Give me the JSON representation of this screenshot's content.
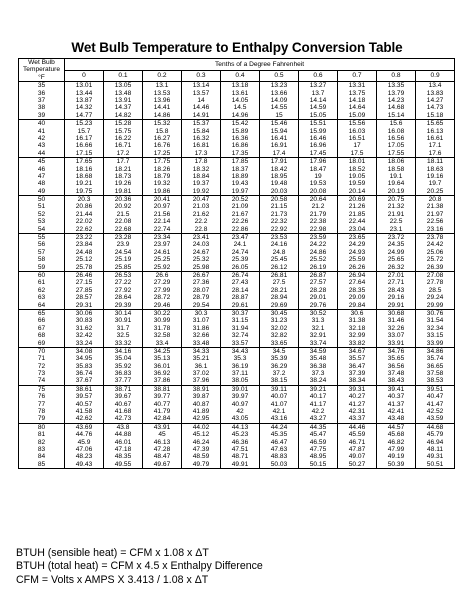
{
  "title": "Wet Bulb Temperature to Enthalpy Conversion Table",
  "header": {
    "wet_bulb_label": "Wet Bulb",
    "temperature_label": "Temperature",
    "unit_label": "°F",
    "tenths_label": "Tenths of a Degree Fahrenheit",
    "columns": [
      "0",
      "0.1",
      "0.2",
      "0.3",
      "0.4",
      "0.5",
      "0.6",
      "0.7",
      "0.8",
      "0.9"
    ]
  },
  "groups": [
    {
      "rows": [
        {
          "temp": "35",
          "values": [
            "13.01",
            "13.05",
            "13.1",
            "13.14",
            "13.18",
            "13.23",
            "13.27",
            "13.31",
            "13.35",
            "13.4"
          ]
        },
        {
          "temp": "36",
          "values": [
            "13.44",
            "13.48",
            "13.53",
            "13.57",
            "13.61",
            "13.66",
            "13.7",
            "13.75",
            "13.79",
            "13.83"
          ]
        },
        {
          "temp": "37",
          "values": [
            "13.87",
            "13.91",
            "13.96",
            "14",
            "14.05",
            "14.09",
            "14.14",
            "14.18",
            "14.23",
            "14.27"
          ]
        },
        {
          "temp": "38",
          "values": [
            "14.32",
            "14.37",
            "14.41",
            "14.46",
            "14.5",
            "14.55",
            "14.59",
            "14.64",
            "14.68",
            "14.73"
          ]
        },
        {
          "temp": "39",
          "values": [
            "14.77",
            "14.82",
            "14.86",
            "14.91",
            "14.96",
            "15",
            "15.05",
            "15.09",
            "15.14",
            "15.18"
          ]
        }
      ]
    },
    {
      "rows": [
        {
          "temp": "40",
          "values": [
            "15.23",
            "15.28",
            "15.32",
            "15.37",
            "15.42",
            "15.46",
            "15.51",
            "15.56",
            "15.6",
            "15.65"
          ]
        },
        {
          "temp": "41",
          "values": [
            "15.7",
            "15.75",
            "15.8",
            "15.84",
            "15.89",
            "15.94",
            "15.99",
            "16.03",
            "16.08",
            "16.13"
          ]
        },
        {
          "temp": "42",
          "values": [
            "16.17",
            "16.22",
            "16.27",
            "16.32",
            "16.36",
            "16.41",
            "16.46",
            "16.51",
            "16.56",
            "16.61"
          ]
        },
        {
          "temp": "43",
          "values": [
            "16.66",
            "16.71",
            "16.76",
            "16.81",
            "16.86",
            "16.91",
            "16.96",
            "17",
            "17.05",
            "17.1"
          ]
        },
        {
          "temp": "44",
          "values": [
            "17.15",
            "17.2",
            "17.25",
            "17.3",
            "17.35",
            "17.4",
            "17.45",
            "17.5",
            "17.55",
            "17.6"
          ]
        }
      ]
    },
    {
      "rows": [
        {
          "temp": "45",
          "values": [
            "17.65",
            "17.7",
            "17.75",
            "17.8",
            "17.85",
            "17.91",
            "17.96",
            "18.01",
            "18.06",
            "18.11"
          ]
        },
        {
          "temp": "46",
          "values": [
            "18.16",
            "18.21",
            "18.26",
            "18.32",
            "18.37",
            "18.42",
            "18.47",
            "18.52",
            "18.58",
            "18.63"
          ]
        },
        {
          "temp": "47",
          "values": [
            "18.68",
            "18.73",
            "18.79",
            "18.84",
            "18.89",
            "18.95",
            "19",
            "19.05",
            "19.1",
            "19.16"
          ]
        },
        {
          "temp": "48",
          "values": [
            "19.21",
            "19.26",
            "19.32",
            "19.37",
            "19.43",
            "19.48",
            "19.53",
            "19.59",
            "19.64",
            "19.7"
          ]
        },
        {
          "temp": "49",
          "values": [
            "19.75",
            "19.81",
            "19.86",
            "19.92",
            "19.97",
            "20.03",
            "20.08",
            "20.14",
            "20.19",
            "20.25"
          ]
        }
      ]
    },
    {
      "rows": [
        {
          "temp": "50",
          "values": [
            "20.3",
            "20.36",
            "20.41",
            "20.47",
            "20.52",
            "20.58",
            "20.64",
            "20.69",
            "20.75",
            "20.8"
          ]
        },
        {
          "temp": "51",
          "values": [
            "20.86",
            "20.92",
            "20.97",
            "21.03",
            "21.09",
            "21.15",
            "21.2",
            "21.26",
            "21.32",
            "21.38"
          ]
        },
        {
          "temp": "52",
          "values": [
            "21.44",
            "21.5",
            "21.56",
            "21.62",
            "21.67",
            "21.73",
            "21.79",
            "21.85",
            "21.91",
            "21.97"
          ]
        },
        {
          "temp": "53",
          "values": [
            "22.02",
            "22.08",
            "22.14",
            "22.2",
            "22.26",
            "22.32",
            "22.38",
            "22.44",
            "22.5",
            "22.56"
          ]
        },
        {
          "temp": "54",
          "values": [
            "22.62",
            "22.68",
            "22.74",
            "22.8",
            "22.86",
            "22.92",
            "22.98",
            "23.04",
            "23.1",
            "23.16"
          ]
        }
      ]
    },
    {
      "rows": [
        {
          "temp": "55",
          "values": [
            "23.22",
            "23.28",
            "23.34",
            "23.41",
            "23.47",
            "23.53",
            "23.59",
            "23.65",
            "23.72",
            "23.78"
          ]
        },
        {
          "temp": "56",
          "values": [
            "23.84",
            "23.9",
            "23.97",
            "24.03",
            "24.1",
            "24.16",
            "24.22",
            "24.29",
            "24.35",
            "24.42"
          ]
        },
        {
          "temp": "57",
          "values": [
            "24.48",
            "24.54",
            "24.61",
            "24.67",
            "24.74",
            "24.8",
            "24.86",
            "24.93",
            "24.99",
            "25.06"
          ]
        },
        {
          "temp": "58",
          "values": [
            "25.12",
            "25.19",
            "25.25",
            "25.32",
            "25.39",
            "25.45",
            "25.52",
            "25.59",
            "25.65",
            "25.72"
          ]
        },
        {
          "temp": "59",
          "values": [
            "25.78",
            "25.85",
            "25.92",
            "25.98",
            "26.05",
            "26.12",
            "26.19",
            "26.26",
            "26.32",
            "26.39"
          ]
        }
      ]
    },
    {
      "rows": [
        {
          "temp": "60",
          "values": [
            "26.46",
            "26.53",
            "26.6",
            "26.67",
            "26.74",
            "26.81",
            "26.87",
            "26.94",
            "27.01",
            "27.08"
          ]
        },
        {
          "temp": "61",
          "values": [
            "27.15",
            "27.22",
            "27.29",
            "27.36",
            "27.43",
            "27.5",
            "27.57",
            "27.64",
            "27.71",
            "27.78"
          ]
        },
        {
          "temp": "62",
          "values": [
            "27.85",
            "27.92",
            "27.99",
            "28.07",
            "28.14",
            "28.21",
            "28.28",
            "28.35",
            "28.43",
            "28.5"
          ]
        },
        {
          "temp": "63",
          "values": [
            "28.57",
            "28.64",
            "28.72",
            "28.79",
            "28.87",
            "28.94",
            "29.01",
            "29.09",
            "29.16",
            "29.24"
          ]
        },
        {
          "temp": "64",
          "values": [
            "29.31",
            "29.39",
            "29.46",
            "29.54",
            "29.61",
            "29.69",
            "29.76",
            "29.84",
            "29.91",
            "29.99"
          ]
        }
      ]
    },
    {
      "rows": [
        {
          "temp": "65",
          "values": [
            "30.06",
            "30.14",
            "30.22",
            "30.3",
            "30.37",
            "30.45",
            "30.52",
            "30.6",
            "30.68",
            "30.76"
          ]
        },
        {
          "temp": "66",
          "values": [
            "30.83",
            "30.91",
            "30.99",
            "31.07",
            "31.15",
            "31.23",
            "31.3",
            "31.38",
            "31.46",
            "31.54"
          ]
        },
        {
          "temp": "67",
          "values": [
            "31.62",
            "31.7",
            "31.78",
            "31.86",
            "31.94",
            "32.02",
            "32.1",
            "32.18",
            "32.26",
            "32.34"
          ]
        },
        {
          "temp": "68",
          "values": [
            "32.42",
            "32.5",
            "32.58",
            "32.66",
            "32.74",
            "32.82",
            "32.91",
            "32.99",
            "33.07",
            "33.15"
          ]
        },
        {
          "temp": "69",
          "values": [
            "33.24",
            "33.32",
            "33.4",
            "33.48",
            "33.57",
            "33.65",
            "33.74",
            "33.82",
            "33.91",
            "33.99"
          ]
        }
      ]
    },
    {
      "rows": [
        {
          "temp": "70",
          "values": [
            "34.08",
            "34.16",
            "34.25",
            "34.33",
            "34.43",
            "34.5",
            "34.59",
            "34.67",
            "34.76",
            "34.86"
          ]
        },
        {
          "temp": "71",
          "values": [
            "34.95",
            "35.04",
            "35.13",
            "35.21",
            "35.3",
            "35.39",
            "35.48",
            "35.57",
            "35.65",
            "35.74"
          ]
        },
        {
          "temp": "72",
          "values": [
            "35.83",
            "35.92",
            "36.01",
            "36.1",
            "36.19",
            "36.29",
            "36.38",
            "36.47",
            "36.56",
            "36.65"
          ]
        },
        {
          "temp": "73",
          "values": [
            "36.74",
            "36.83",
            "36.92",
            "37.02",
            "37.11",
            "37.2",
            "37.3",
            "37.39",
            "37.48",
            "37.58"
          ]
        },
        {
          "temp": "74",
          "values": [
            "37.67",
            "37.77",
            "37.86",
            "37.96",
            "38.05",
            "38.15",
            "38.24",
            "38.34",
            "38.43",
            "38.53"
          ]
        }
      ]
    },
    {
      "rows": [
        {
          "temp": "75",
          "values": [
            "38.61",
            "38.71",
            "38.81",
            "38.91",
            "39.01",
            "39.11",
            "39.21",
            "39.31",
            "39.41",
            "39.51"
          ]
        },
        {
          "temp": "76",
          "values": [
            "39.57",
            "39.67",
            "39.77",
            "39.87",
            "39.97",
            "40.07",
            "40.17",
            "40.27",
            "40.37",
            "40.47"
          ]
        },
        {
          "temp": "77",
          "values": [
            "40.57",
            "40.67",
            "40.77",
            "40.87",
            "40.97",
            "41.07",
            "41.17",
            "41.27",
            "41.37",
            "41.47"
          ]
        },
        {
          "temp": "78",
          "values": [
            "41.58",
            "41.68",
            "41.79",
            "41.89",
            "42",
            "42.1",
            "42.2",
            "42.31",
            "42.41",
            "42.52"
          ]
        },
        {
          "temp": "79",
          "values": [
            "42.62",
            "42.73",
            "42.84",
            "42.95",
            "43.05",
            "43.16",
            "43.27",
            "43.37",
            "43.48",
            "43.59"
          ]
        }
      ]
    },
    {
      "rows": [
        {
          "temp": "80",
          "values": [
            "43.69",
            "43.8",
            "43.91",
            "44.02",
            "44.13",
            "44.24",
            "44.35",
            "44.46",
            "44.57",
            "44.68"
          ]
        },
        {
          "temp": "81",
          "values": [
            "44.76",
            "44.88",
            "45",
            "45.12",
            "45.23",
            "45.35",
            "45.47",
            "45.59",
            "45.68",
            "45.79"
          ]
        },
        {
          "temp": "82",
          "values": [
            "45.9",
            "46.01",
            "46.13",
            "46.24",
            "46.36",
            "46.47",
            "46.59",
            "46.71",
            "46.82",
            "46.94"
          ]
        },
        {
          "temp": "83",
          "values": [
            "47.06",
            "47.18",
            "47.28",
            "47.39",
            "47.51",
            "47.63",
            "47.75",
            "47.87",
            "47.99",
            "48.11"
          ]
        },
        {
          "temp": "84",
          "values": [
            "48.23",
            "48.35",
            "48.47",
            "48.59",
            "48.71",
            "48.83",
            "48.95",
            "49.07",
            "49.19",
            "49.31"
          ]
        },
        {
          "temp": "85",
          "values": [
            "49.43",
            "49.55",
            "49.67",
            "49.79",
            "49.91",
            "50.03",
            "50.15",
            "50.27",
            "50.39",
            "50.51"
          ]
        }
      ]
    }
  ],
  "formulas": [
    "BTUH (sensible heat) = CFM x 1.08 x ΔT",
    "BTUH (total heat) = CFM x 4.5 x Enthalpy Difference",
    "CFM = Volts x AMPS X 3.413 / 1.08 x ΔT"
  ]
}
